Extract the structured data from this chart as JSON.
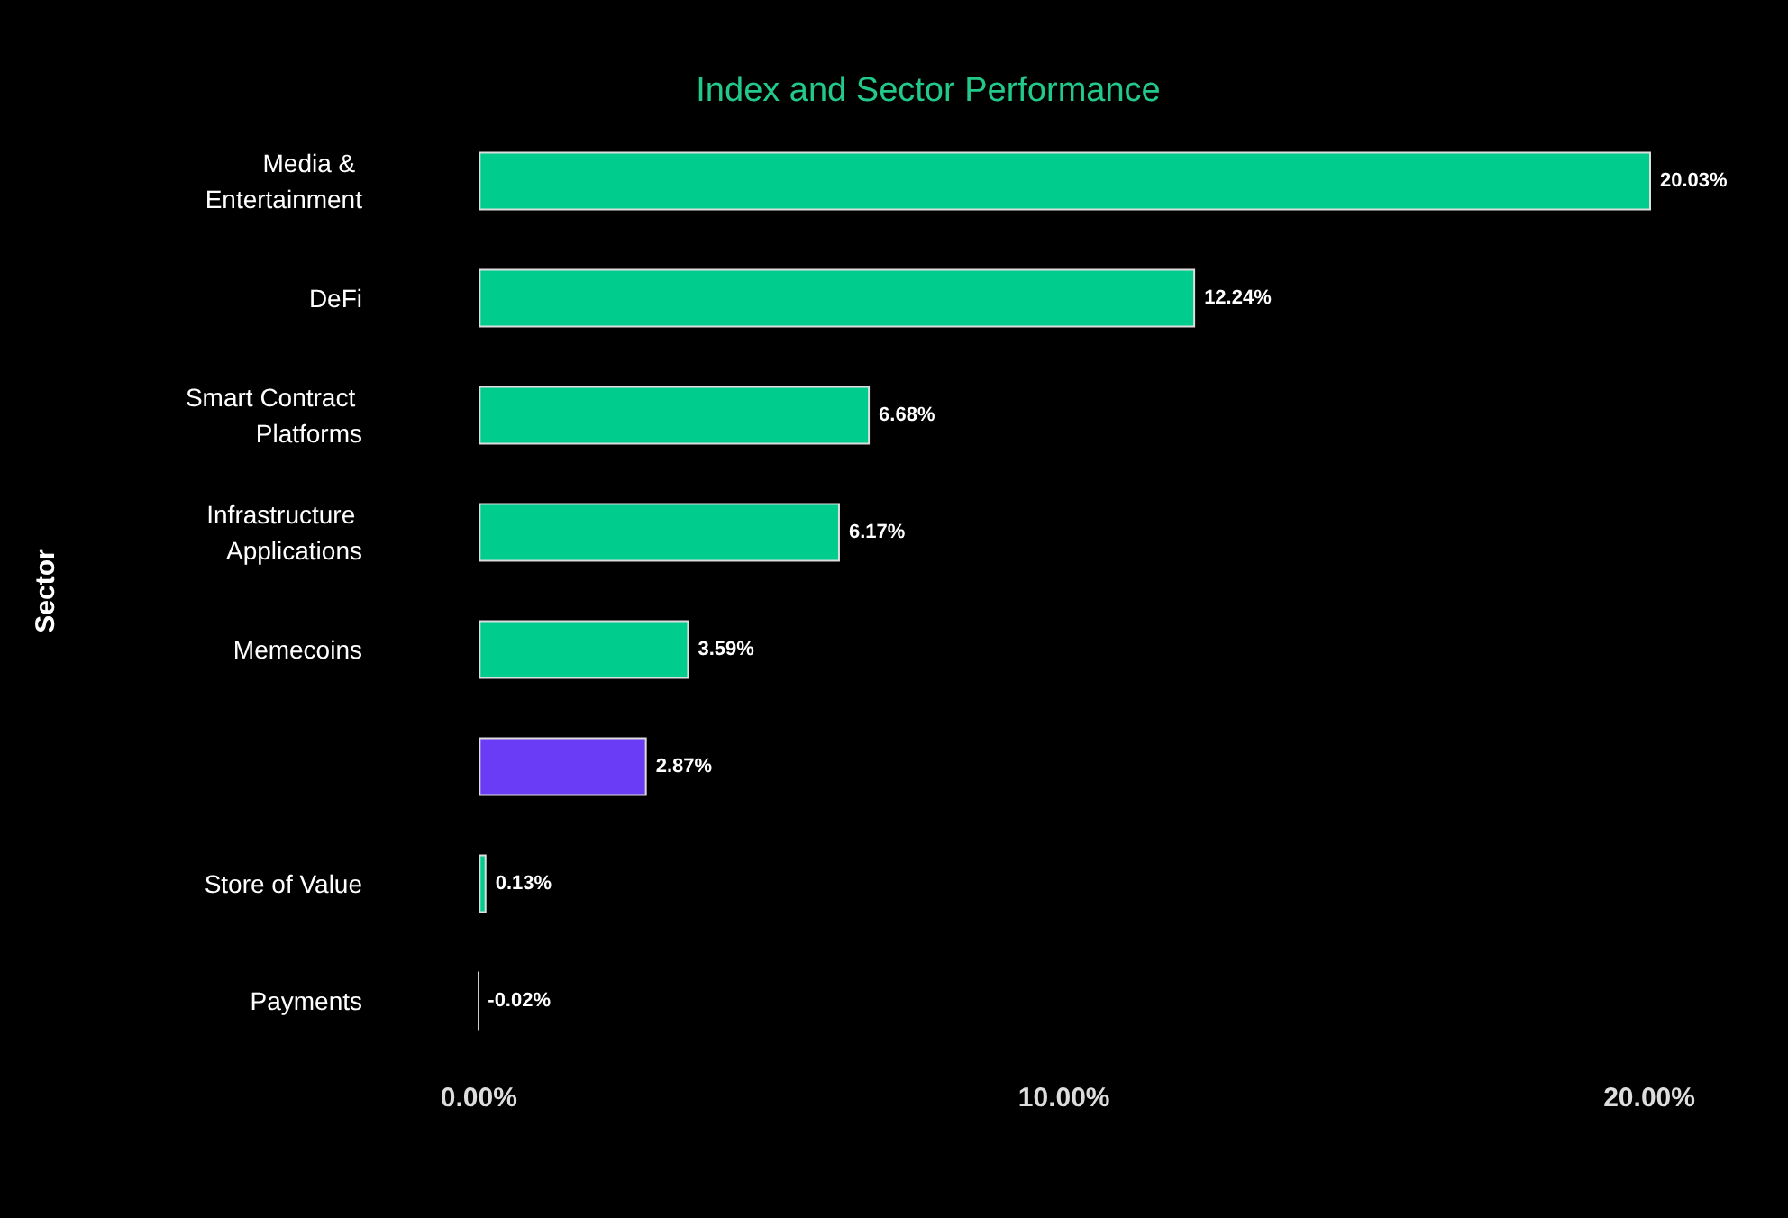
{
  "chart_data": {
    "type": "bar",
    "orientation": "horizontal",
    "title": "Index and Sector Performance",
    "ylabel": "Sector",
    "categories": [
      "Media & Entertainment",
      "DeFi",
      "Smart Contract Platforms",
      "Infrastructure Applications",
      "Memecoins",
      null,
      "Store of Value",
      "Payments"
    ],
    "values": [
      20.03,
      12.24,
      6.68,
      6.17,
      3.59,
      2.87,
      0.13,
      -0.02
    ],
    "colors": [
      "#00cc8e",
      "#00cc8e",
      "#00cc8e",
      "#00cc8e",
      "#00cc8e",
      "#6b3cf5",
      "#00cc8e",
      "#cccccc"
    ],
    "value_labels": [
      "20.03%",
      "12.24%",
      "6.68%",
      "6.17%",
      "3.59%",
      "2.87%",
      "0.13%",
      "-0.02%"
    ],
    "xlim": [
      -0.02,
      20.03
    ],
    "xticks": [
      {
        "value": 0,
        "label": "0.00%"
      },
      {
        "value": 10,
        "label": "10.00%"
      },
      {
        "value": 20,
        "label": "20.00%"
      }
    ],
    "grid": false
  }
}
